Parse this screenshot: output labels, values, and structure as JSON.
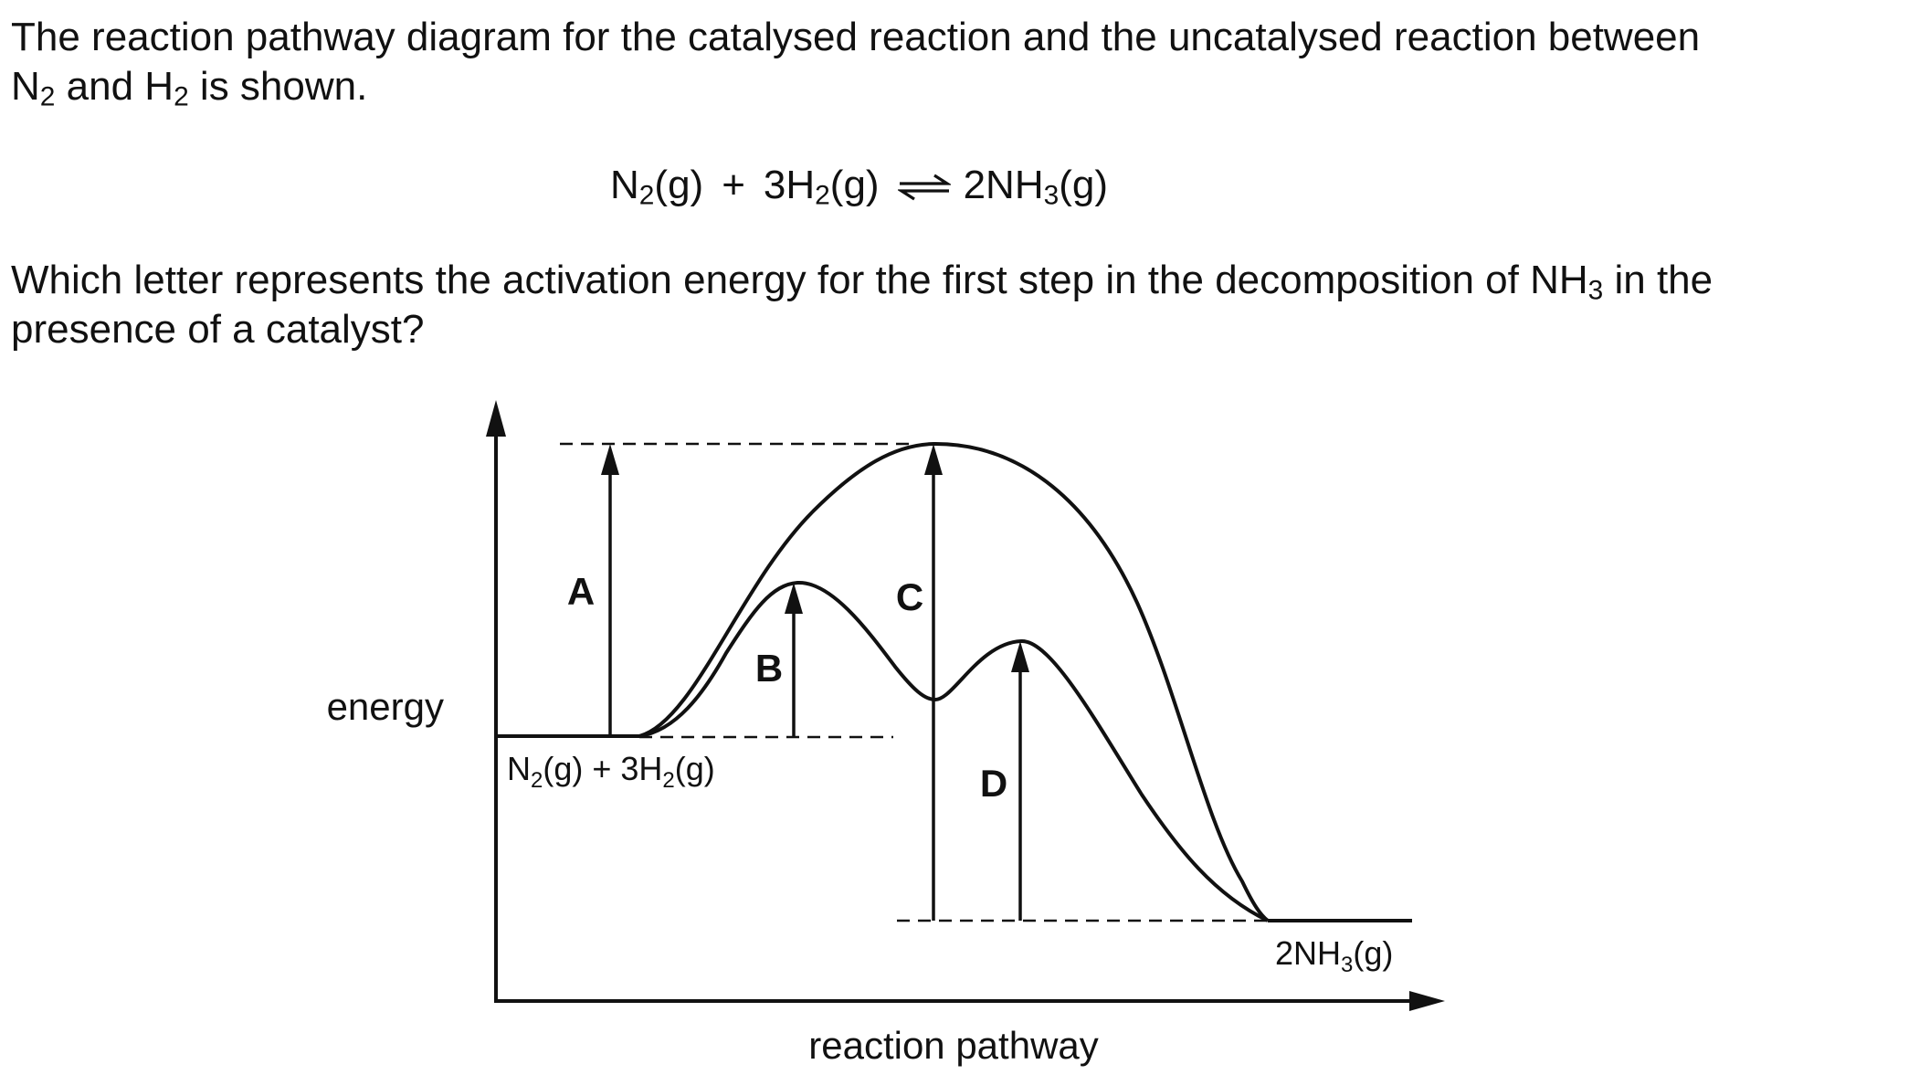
{
  "question": {
    "intro_line_1": "The reaction pathway diagram for the catalysed reaction and the uncatalysed reaction between",
    "intro_line_2": {
      "n": "N",
      "n_sub": "2",
      "mid": " and H",
      "h_sub": "2",
      "end": " is shown."
    },
    "equation": {
      "reactant_1": "N",
      "reactant_1_sub": "2",
      "reactant_1_state": "(g)",
      "plus": "+",
      "reactant_2": "3H",
      "reactant_2_sub": "2",
      "reactant_2_state": "(g)",
      "product": "2NH",
      "product_sub": "3",
      "product_state": "(g)"
    },
    "prompt_line_1": {
      "start": "Which letter represents the activation energy for the first step in the decomposition of NH",
      "sub": "3",
      "end": " in the"
    },
    "prompt_line_2": "presence of a catalyst?"
  },
  "diagram": {
    "y_axis_label": "energy",
    "x_axis_label": "reaction pathway",
    "reactants_label": {
      "n": "N",
      "n_sub": "2",
      "mid": "(g) + 3H",
      "h_sub": "2",
      "end": "(g)"
    },
    "products_label": {
      "main": "2NH",
      "sub": "3",
      "end": "(g)"
    },
    "arrow_labels": {
      "a": "A",
      "b": "B",
      "c": "C",
      "d": "D"
    }
  }
}
